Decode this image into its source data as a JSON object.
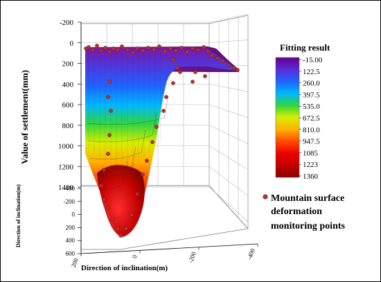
{
  "chart_data": {
    "type": "surface3d",
    "z_axis": {
      "label": "Value of settlement(mm)",
      "ticks": [
        "-200",
        "0",
        "200",
        "400",
        "600",
        "800",
        "1000",
        "1200",
        "1400"
      ],
      "range": [
        -200,
        1400
      ]
    },
    "y_axis": {
      "label": "Direction of inclination(m)",
      "ticks": [
        "-400",
        "-200",
        "0",
        "200",
        "400",
        "600"
      ],
      "range": [
        -400,
        600
      ]
    },
    "x_axis": {
      "label": "Direction of inclination(m)",
      "ticks": [
        "200",
        "0",
        "-200",
        "-400"
      ],
      "range": [
        200,
        -400
      ]
    },
    "colorbar": {
      "title": "Fitting result",
      "labels": [
        "-15.00",
        "122.5",
        "260.0",
        "397.5",
        "535.0",
        "672.5",
        "810.0",
        "947.5",
        "1085",
        "1223",
        "1360"
      ],
      "colors": [
        "#6a008f",
        "#5a2bd8",
        "#1f64ff",
        "#00b7ff",
        "#2fd640",
        "#d8ee00",
        "#ffb000",
        "#ff4a00",
        "#ef0000",
        "#c40000",
        "#8c0000"
      ],
      "range": [
        -15,
        1360
      ]
    },
    "legend": {
      "label": "Mountain surface deformation monitoring points",
      "line1": "Mountain surface",
      "line2": "deformation",
      "line3": "monitoring points",
      "marker_color": "#b4342a"
    }
  }
}
